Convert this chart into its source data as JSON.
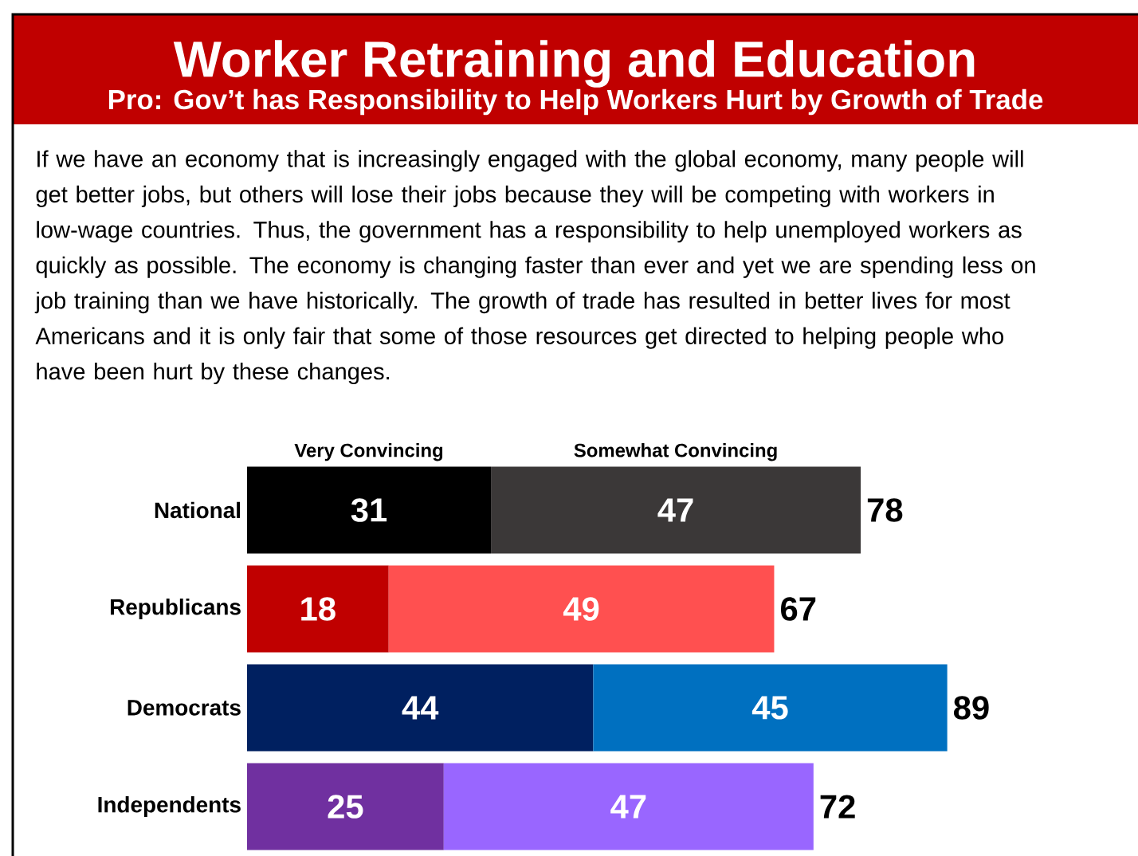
{
  "chart_data": {
    "type": "bar",
    "orientation": "horizontal",
    "stacked": true,
    "title": "Worker Retraining and Education",
    "subtitle": "Pro: Gov’t has Responsibility to Help Workers Hurt by Growth of Trade",
    "annotations": [
      "If we have an economy that is increasingly engaged with the global economy, many people will get better jobs, but others will lose their jobs because they will be competing with workers in low-wage countries. Thus, the government has a responsibility to help unemployed workers as quickly as possible. The economy is changing faster than ever and yet we are spending less on job training than we have historically. The growth of trade has resulted in better lives for most Americans and it is only fair that some of those resources get directed to helping people who have been hurt by these changes."
    ],
    "categories": [
      "National",
      "Republicans",
      "Democrats",
      "Independents"
    ],
    "series": [
      {
        "name": "Very Convincing",
        "colors": [
          "#000000",
          "#c00000",
          "#002060",
          "#7030a0"
        ],
        "values": [
          31,
          18,
          44,
          25
        ]
      },
      {
        "name": "Somewhat Convincing",
        "colors": [
          "#3b3838",
          "#ff5050",
          "#0070c0",
          "#9966ff"
        ],
        "values": [
          47,
          49,
          45,
          47
        ]
      }
    ],
    "data_labels": true,
    "totals": [
      "78",
      "67",
      "89",
      "72"
    ],
    "tick_labels": "y"
  }
}
